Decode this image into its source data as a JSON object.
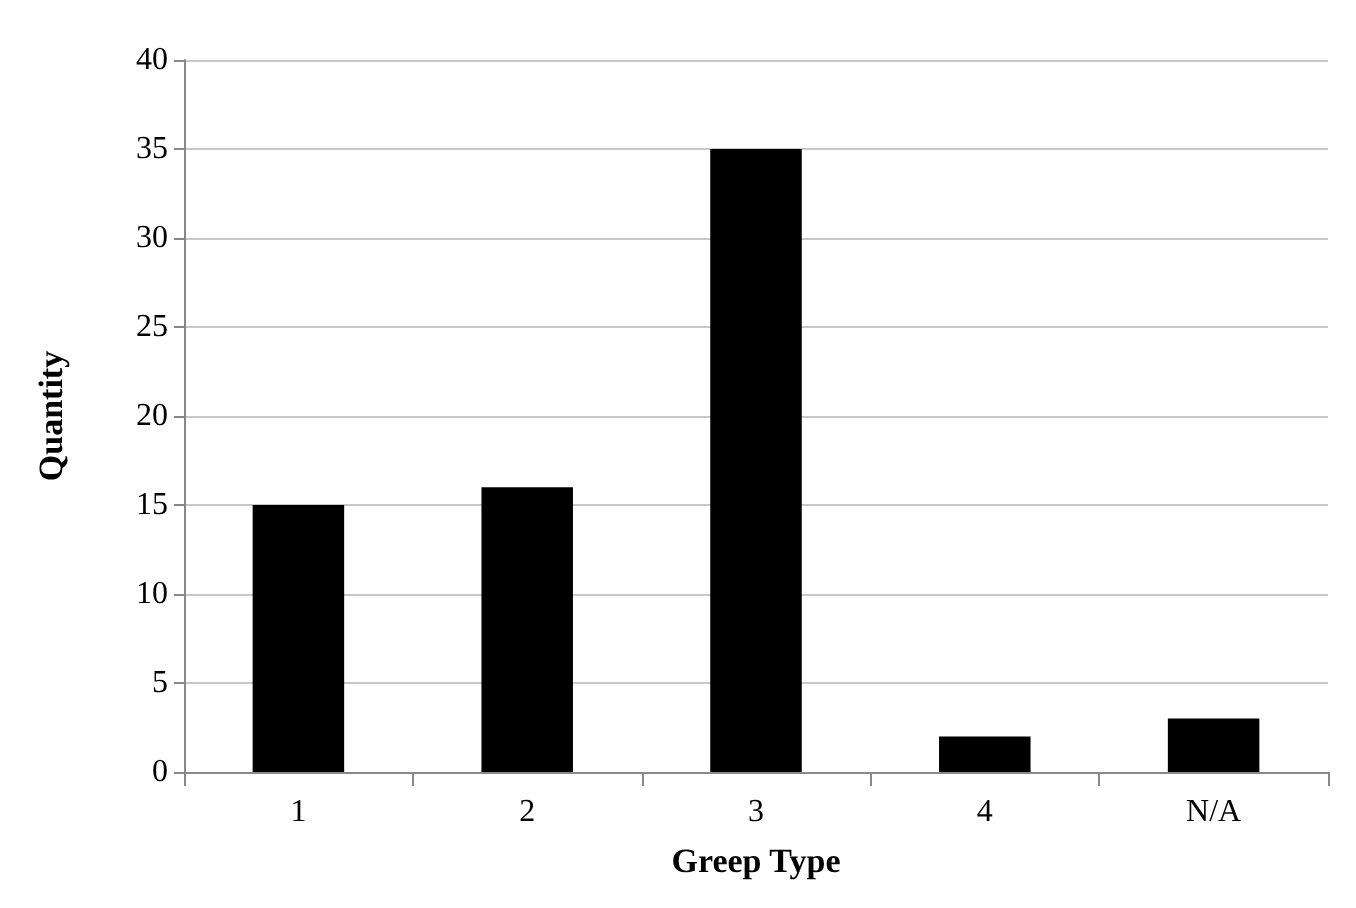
{
  "chart_data": {
    "type": "bar",
    "xlabel": "Greep Type",
    "ylabel": "Quantity",
    "categories": [
      "1",
      "2",
      "3",
      "4",
      "N/A"
    ],
    "values": [
      15,
      16,
      35,
      2,
      3
    ],
    "color": "#000000",
    "ylim": [
      0,
      40
    ],
    "yticks": [
      0,
      5,
      10,
      15,
      20,
      25,
      30,
      35,
      40
    ],
    "grid": "y"
  }
}
